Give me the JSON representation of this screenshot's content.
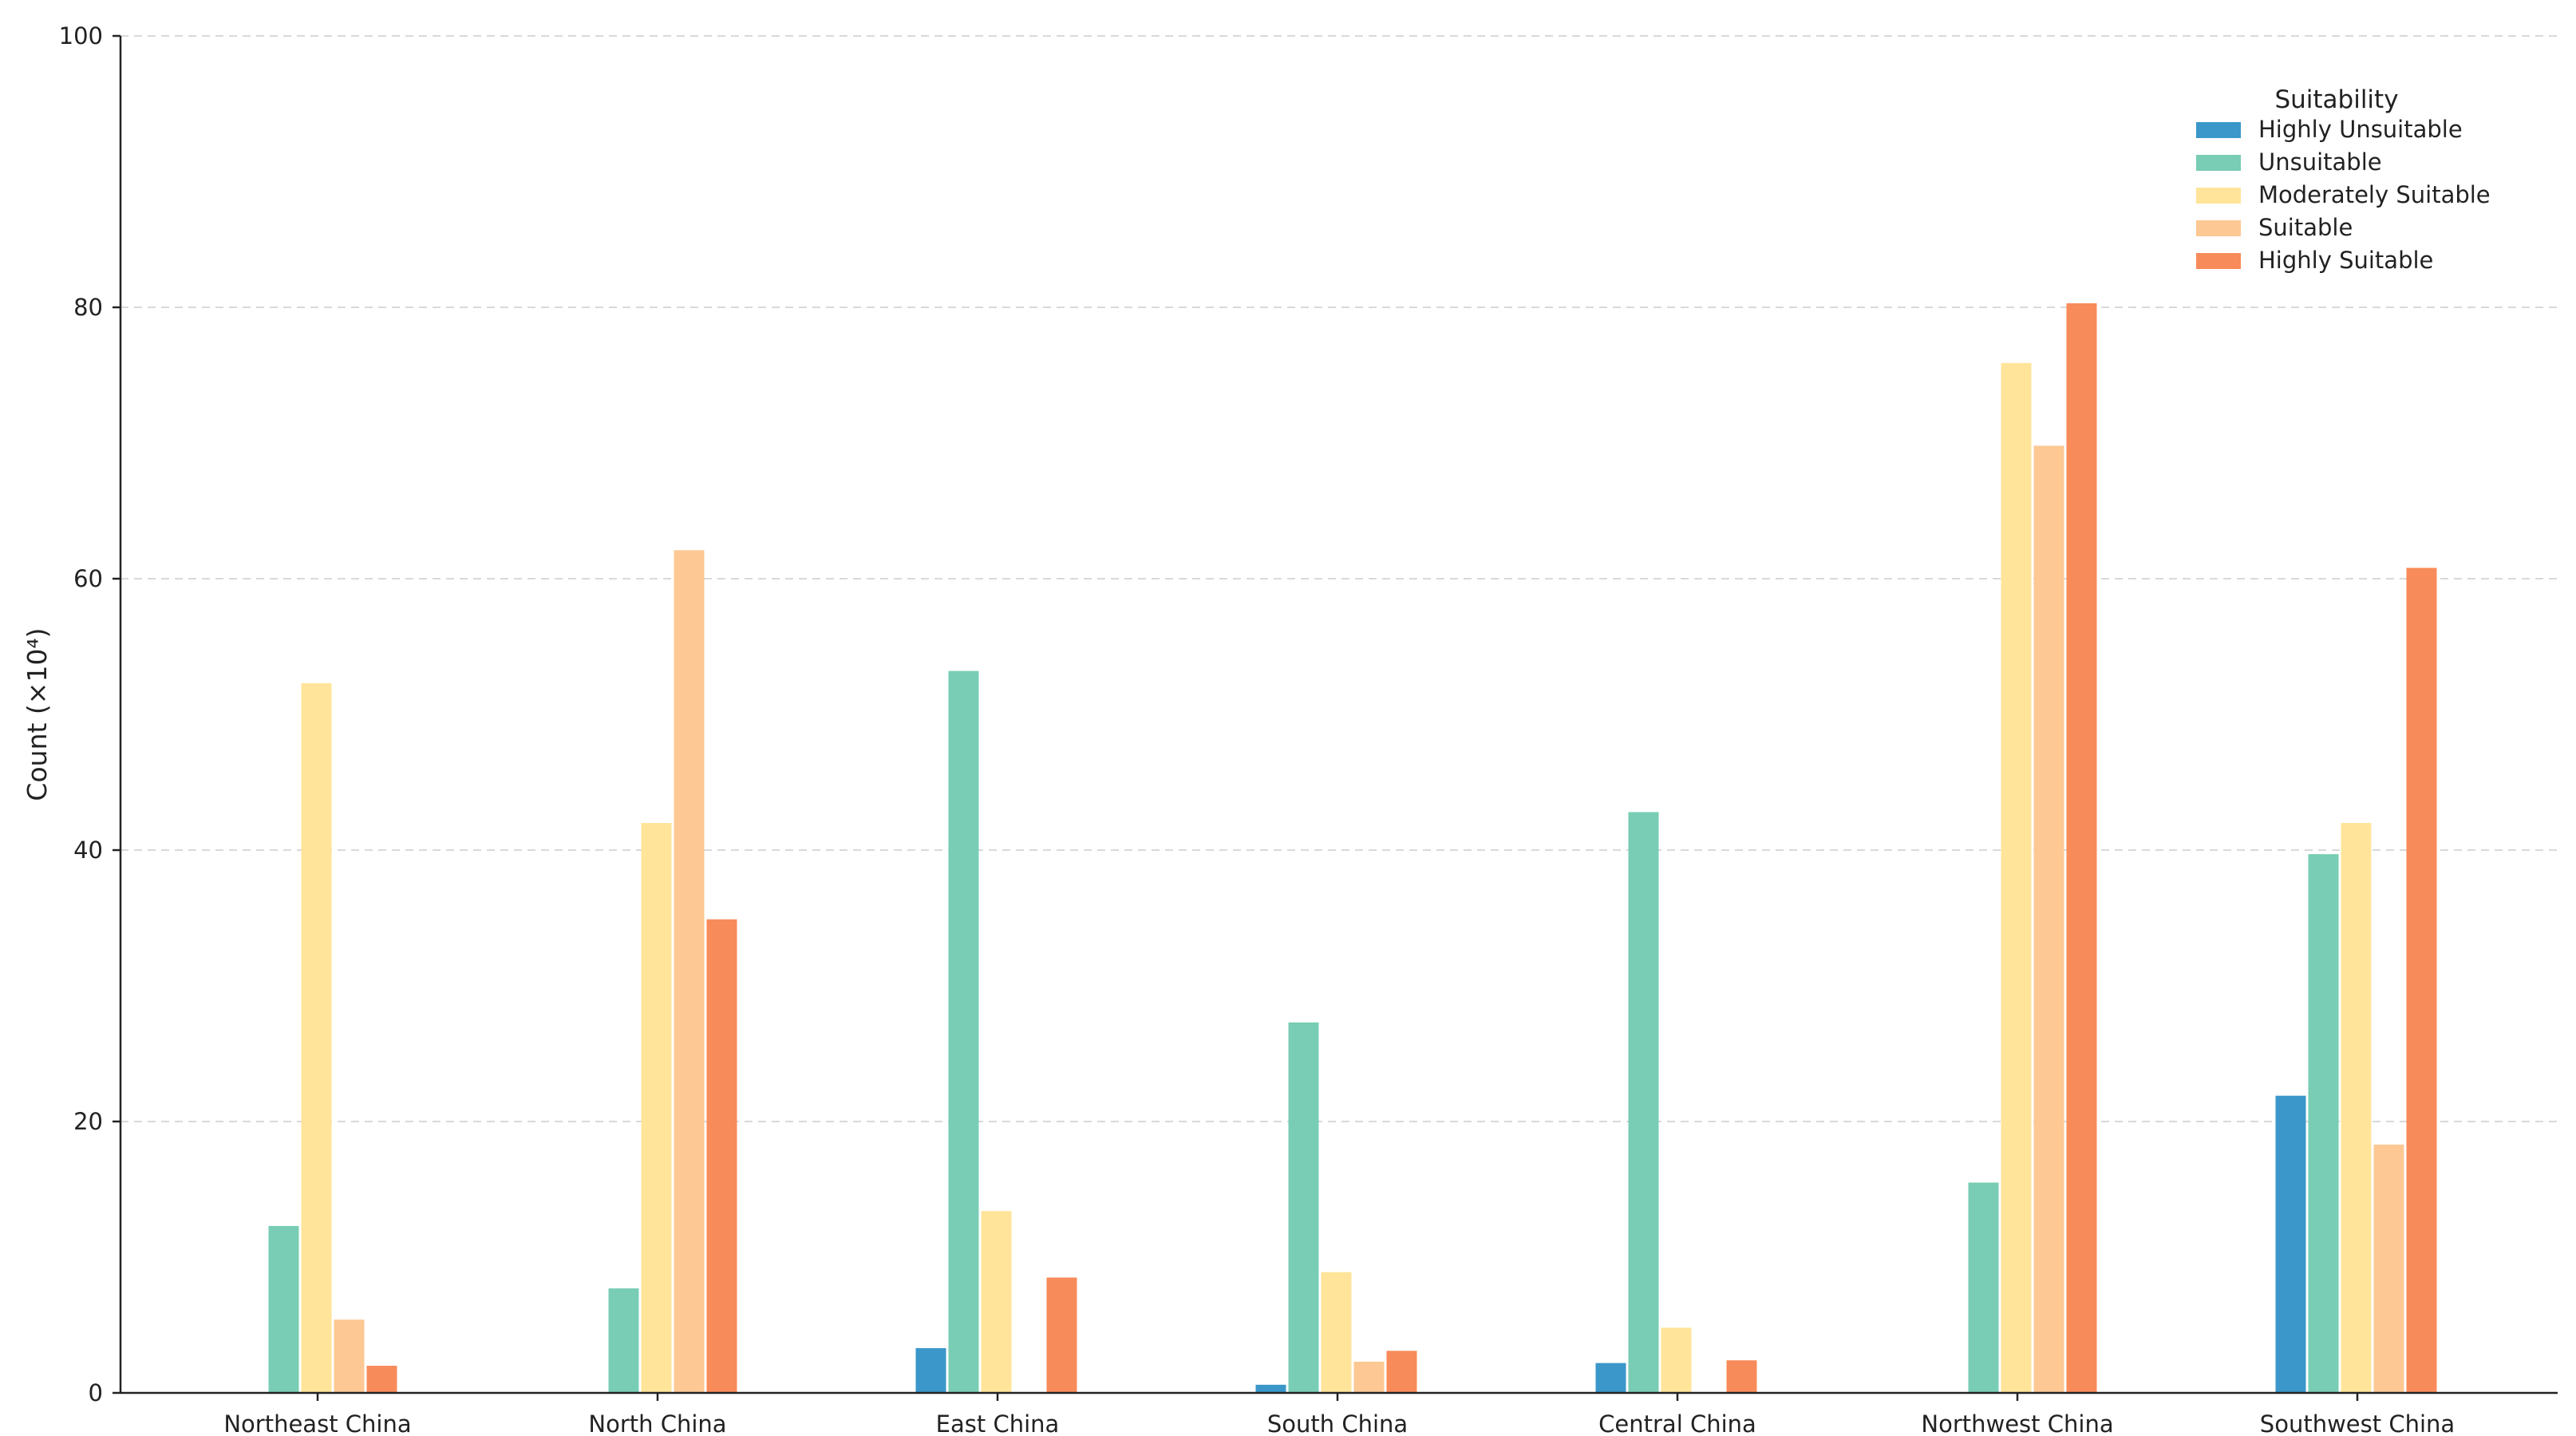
{
  "chart_data": {
    "type": "bar",
    "ylabel": "Count (×10⁴)",
    "xlabel": "",
    "ylim": [
      0,
      100
    ],
    "yticks": [
      0,
      20,
      40,
      60,
      80,
      100
    ],
    "grid": "horizontal dashed",
    "legend_title": "Suitability",
    "legend_position": "top-right",
    "categories": [
      "Northeast China",
      "North China",
      "East China",
      "South China",
      "Central China",
      "Northwest China",
      "Southwest China"
    ],
    "series": [
      {
        "name": "Highly Unsuitable",
        "color": "#3B97C9",
        "values": [
          0,
          0,
          3.3,
          0.6,
          2.2,
          0,
          21.9
        ]
      },
      {
        "name": "Unsuitable",
        "color": "#78CDB4",
        "values": [
          12.3,
          7.7,
          53.2,
          27.3,
          42.8,
          15.5,
          39.7
        ]
      },
      {
        "name": "Moderately Suitable",
        "color": "#FFE49A",
        "values": [
          52.3,
          42.0,
          13.4,
          8.9,
          4.8,
          75.9,
          42.0
        ]
      },
      {
        "name": "Suitable",
        "color": "#FDC894",
        "values": [
          5.4,
          62.1,
          0,
          2.3,
          0,
          69.8,
          18.3
        ]
      },
      {
        "name": "Highly Suitable",
        "color": "#F88B5A",
        "values": [
          2.0,
          34.9,
          8.5,
          3.1,
          2.4,
          80.3,
          60.8
        ]
      }
    ]
  }
}
